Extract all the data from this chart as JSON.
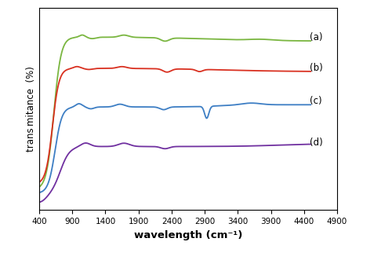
{
  "title": "",
  "xlabel": "wavelength (cm⁻¹)",
  "ylabel": "trans mitance  (%)",
  "xlim": [
    400,
    4900
  ],
  "xticks": [
    400,
    900,
    1400,
    1900,
    2400,
    2900,
    3400,
    3900,
    4400,
    4900
  ],
  "colors": {
    "a": "#7ab640",
    "b": "#d93020",
    "c": "#3d7ec4",
    "d": "#7030a0"
  },
  "background": "#ffffff",
  "figsize": [
    5.0,
    3.22
  ],
  "dpi": 100
}
